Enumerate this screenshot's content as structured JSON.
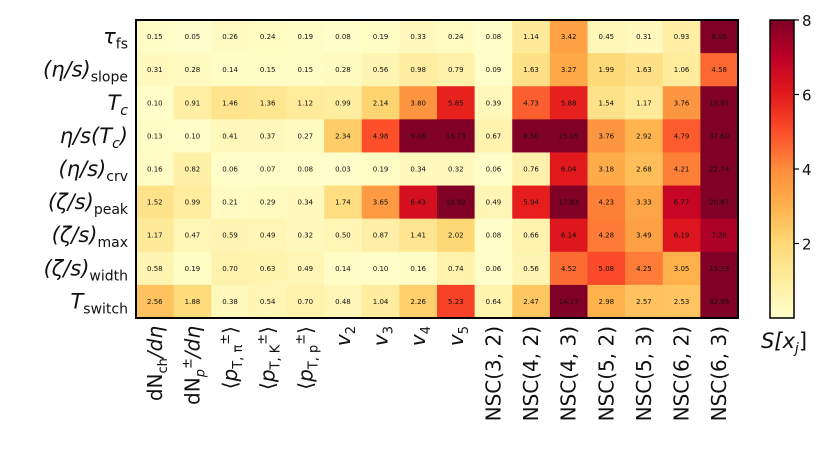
{
  "chart_data": {
    "type": "heatmap",
    "rows": [
      "τ_fs",
      "(η/s)_slope",
      "T_c",
      "η/s(T_c)",
      "(η/s)_crv",
      "(ζ/s)_peak",
      "(ζ/s)_max",
      "(ζ/s)_width",
      "T_switch"
    ],
    "row_labels": [
      {
        "base": "τ",
        "sub": "fs",
        "italic_base": true
      },
      {
        "base": "(η/s)",
        "sub": "slope",
        "italic_base": true
      },
      {
        "base": "T",
        "sub": "c",
        "italic_base": true,
        "italic_sub": true
      },
      {
        "base": "η/s(T",
        "sub": "c",
        "after": ")",
        "italic_base": true,
        "italic_sub": true
      },
      {
        "base": "(η/s)",
        "sub": "crv",
        "italic_base": true
      },
      {
        "base": "(ζ/s)",
        "sub": "peak",
        "italic_base": true
      },
      {
        "base": "(ζ/s)",
        "sub": "max",
        "italic_base": true
      },
      {
        "base": "(ζ/s)",
        "sub": "width",
        "italic_base": true
      },
      {
        "base": "T",
        "sub": "switch",
        "italic_base": true
      }
    ],
    "columns": [
      "dN_ch/dη",
      "dN_p±/dη",
      "⟨p_T,π±⟩",
      "⟨p_T,K±⟩",
      "⟨p_T,p⟩",
      "v_2",
      "v_3",
      "v_4",
      "v_5",
      "NSC(3, 2)",
      "NSC(4, 2)",
      "NSC(4, 3)",
      "NSC(5, 2)",
      "NSC(5, 3)",
      "NSC(6, 2)",
      "NSC(6, 3)"
    ],
    "column_labels": [
      {
        "parts": [
          {
            "t": "dN"
          },
          {
            "t": "ch",
            "sub": true
          },
          {
            "t": "/dη",
            "italic": true
          }
        ]
      },
      {
        "parts": [
          {
            "t": "dN"
          },
          {
            "t": "p",
            "sub": true,
            "italic": true
          },
          {
            "t": "±",
            "sup": true
          },
          {
            "t": "/dη",
            "italic": true
          }
        ]
      },
      {
        "parts": [
          {
            "t": "⟨"
          },
          {
            "t": "p",
            "italic": true
          },
          {
            "t": "T, π",
            "sub": true
          },
          {
            "t": "±",
            "sup": true
          },
          {
            "t": "⟩"
          }
        ]
      },
      {
        "parts": [
          {
            "t": "⟨"
          },
          {
            "t": "p",
            "italic": true
          },
          {
            "t": "T, K",
            "sub": true
          },
          {
            "t": "±",
            "sup": true
          },
          {
            "t": "⟩"
          }
        ]
      },
      {
        "parts": [
          {
            "t": "⟨"
          },
          {
            "t": "p",
            "italic": true
          },
          {
            "t": "T, p",
            "sub": true
          },
          {
            "t": "±",
            "sup": true
          },
          {
            "t": "⟩"
          }
        ]
      },
      {
        "parts": [
          {
            "t": "v",
            "italic": true
          },
          {
            "t": "2",
            "sub": true
          }
        ]
      },
      {
        "parts": [
          {
            "t": "v",
            "italic": true
          },
          {
            "t": "3",
            "sub": true
          }
        ]
      },
      {
        "parts": [
          {
            "t": "v",
            "italic": true
          },
          {
            "t": "4",
            "sub": true
          }
        ]
      },
      {
        "parts": [
          {
            "t": "v",
            "italic": true
          },
          {
            "t": "5",
            "sub": true
          }
        ]
      },
      {
        "parts": [
          {
            "t": "NSC(3, 2)"
          }
        ]
      },
      {
        "parts": [
          {
            "t": "NSC(4, 2)"
          }
        ]
      },
      {
        "parts": [
          {
            "t": "NSC(4, 3)"
          }
        ]
      },
      {
        "parts": [
          {
            "t": "NSC(5, 2)"
          }
        ]
      },
      {
        "parts": [
          {
            "t": "NSC(5, 3)"
          }
        ]
      },
      {
        "parts": [
          {
            "t": "NSC(6, 2)"
          }
        ]
      },
      {
        "parts": [
          {
            "t": "NSC(6, 3)"
          }
        ]
      }
    ],
    "values": [
      [
        0.15,
        0.05,
        0.26,
        0.24,
        0.19,
        0.08,
        0.19,
        0.33,
        0.24,
        0.08,
        1.14,
        3.42,
        0.45,
        0.31,
        0.93,
        9.05
      ],
      [
        0.31,
        0.28,
        0.14,
        0.15,
        0.15,
        0.28,
        0.56,
        0.98,
        0.79,
        0.09,
        1.63,
        3.27,
        1.99,
        1.63,
        1.06,
        4.58
      ],
      [
        0.1,
        0.91,
        1.46,
        1.36,
        1.12,
        0.99,
        2.14,
        3.8,
        5.85,
        0.39,
        4.73,
        5.88,
        1.54,
        1.17,
        3.76,
        13.81
      ],
      [
        0.13,
        0.1,
        0.41,
        0.37,
        0.27,
        2.34,
        4.98,
        9.06,
        16.73,
        0.67,
        8.5,
        25.05,
        3.76,
        2.92,
        4.79,
        37.6
      ],
      [
        0.16,
        0.82,
        0.06,
        0.07,
        0.08,
        0.03,
        0.19,
        0.34,
        0.32,
        0.06,
        0.76,
        6.04,
        3.18,
        2.68,
        4.21,
        22.74
      ],
      [
        1.52,
        0.99,
        0.21,
        0.29,
        0.34,
        1.74,
        3.65,
        6.43,
        10.92,
        0.49,
        5.94,
        17.83,
        4.23,
        3.33,
        6.77,
        20.87
      ],
      [
        1.17,
        0.47,
        0.59,
        0.49,
        0.32,
        0.5,
        0.87,
        1.41,
        2.02,
        0.08,
        0.66,
        6.14,
        4.28,
        3.49,
        6.19,
        7.28
      ],
      [
        0.58,
        0.19,
        0.7,
        0.63,
        0.49,
        0.14,
        0.1,
        0.16,
        0.74,
        0.06,
        0.56,
        4.52,
        5.08,
        4.25,
        3.05,
        15.23
      ],
      [
        2.56,
        1.88,
        0.38,
        0.54,
        0.7,
        0.48,
        1.04,
        2.26,
        5.23,
        0.64,
        2.47,
        14.17,
        2.98,
        2.57,
        2.53,
        42.99
      ]
    ],
    "value_labels": [
      [
        "0.15",
        "0.05",
        "0.26",
        "0.24",
        "0.19",
        "0.08",
        "0.19",
        "0.33",
        "0.24",
        "0.08",
        "1.14",
        "3.42",
        "0.45",
        "0.31",
        "0.93",
        "9.05"
      ],
      [
        "0.31",
        "0.28",
        "0.14",
        "0.15",
        "0.15",
        "0.28",
        "0.56",
        "0.98",
        "0.79",
        "0.09",
        "1.63",
        "3.27",
        "1.99",
        "1.63",
        "1.06",
        "4.58"
      ],
      [
        "0.10",
        "0.91",
        "1.46",
        "1.36",
        "1.12",
        "0.99",
        "2.14",
        "3.80",
        "5.85",
        "0.39",
        "4.73",
        "5.88",
        "1.54",
        "1.17",
        "3.76",
        "13.81"
      ],
      [
        "0.13",
        "0.10",
        "0.41",
        "0.37",
        "0.27",
        "2.34",
        "4.98",
        "9.06",
        "16.73",
        "0.67",
        "8.50",
        "25.05",
        "3.76",
        "2.92",
        "4.79",
        "37.60"
      ],
      [
        "0.16",
        "0.82",
        "0.06",
        "0.07",
        "0.08",
        "0.03",
        "0.19",
        "0.34",
        "0.32",
        "0.06",
        "0.76",
        "6.04",
        "3.18",
        "2.68",
        "4.21",
        "22.74"
      ],
      [
        "1.52",
        "0.99",
        "0.21",
        "0.29",
        "0.34",
        "1.74",
        "3.65",
        "6.43",
        "10.92",
        "0.49",
        "5.94",
        "17.83",
        "4.23",
        "3.33",
        "6.77",
        "20.87"
      ],
      [
        "1.17",
        "0.47",
        "0.59",
        "0.49",
        "0.32",
        "0.50",
        "0.87",
        "1.41",
        "2.02",
        "0.08",
        "0.66",
        "6.14",
        "4.28",
        "3.49",
        "6.19",
        "7.28"
      ],
      [
        "0.58",
        "0.19",
        "0.70",
        "0.63",
        "0.49",
        "0.14",
        "0.10",
        "0.16",
        "0.74",
        "0.06",
        "0.56",
        "4.52",
        "5.08",
        "4.25",
        "3.05",
        "15.23"
      ],
      [
        "2.56",
        "1.88",
        "0.38",
        "0.54",
        "0.70",
        "0.48",
        "1.04",
        "2.26",
        "5.23",
        "0.64",
        "2.47",
        "14.17",
        "2.98",
        "2.57",
        "2.53",
        "42.99"
      ]
    ],
    "colormap": "YlOrRd",
    "color_range": [
      0,
      8
    ],
    "colorbar": {
      "ticks": [
        2,
        4,
        6,
        8
      ],
      "tick_labels": [
        "2",
        "4",
        "6",
        "8"
      ],
      "label": {
        "base": "S[x",
        "sub": "j",
        "after": "]"
      }
    }
  }
}
